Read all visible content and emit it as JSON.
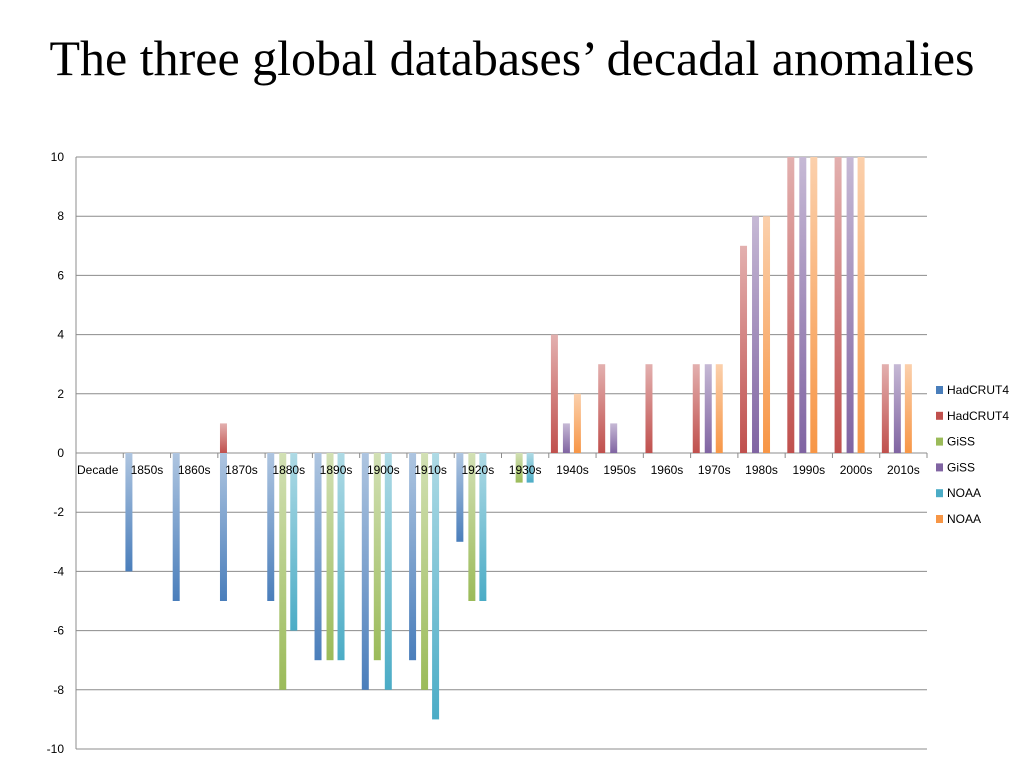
{
  "title": "The three global databases’ decadal anomalies",
  "chart_data": {
    "type": "bar",
    "title": "The three global databases’ decadal anomalies",
    "categories": [
      "Decade",
      "1850s",
      "1860s",
      "1870s",
      "1880s",
      "1890s",
      "1900s",
      "1910s",
      "1920s",
      "1930s",
      "1940s",
      "1950s",
      "1960s",
      "1970s",
      "1980s",
      "1990s",
      "2000s",
      "2010s"
    ],
    "ylim": [
      -10,
      10
    ],
    "yticks": [
      -10,
      -8,
      -6,
      -4,
      -2,
      0,
      2,
      4,
      6,
      8,
      10
    ],
    "grid": true,
    "legend_position": "right",
    "series": [
      {
        "name": "HadCRUT4",
        "color": "#4a7ebb",
        "values": [
          null,
          -4,
          -5,
          -5,
          -5,
          -7,
          -8,
          -7,
          -3,
          null,
          null,
          null,
          null,
          null,
          null,
          null,
          null,
          null
        ]
      },
      {
        "name": "HadCRUT4",
        "color": "#c0504d",
        "values": [
          null,
          null,
          null,
          1,
          null,
          null,
          null,
          null,
          null,
          null,
          4,
          3,
          3,
          3,
          7,
          10,
          10,
          3
        ]
      },
      {
        "name": "GiSS",
        "color": "#9bbb59",
        "values": [
          null,
          null,
          null,
          null,
          -8,
          -7,
          -7,
          -8,
          -5,
          -1,
          null,
          null,
          null,
          null,
          null,
          null,
          null,
          null
        ]
      },
      {
        "name": "GiSS",
        "color": "#8064a2",
        "values": [
          null,
          null,
          null,
          null,
          null,
          null,
          null,
          null,
          null,
          null,
          1,
          1,
          null,
          3,
          8,
          10,
          10,
          3
        ]
      },
      {
        "name": "NOAA",
        "color": "#4bacc6",
        "values": [
          null,
          null,
          null,
          null,
          -6,
          -7,
          -8,
          -9,
          -5,
          -1,
          null,
          null,
          null,
          null,
          null,
          null,
          null,
          null
        ]
      },
      {
        "name": "NOAA",
        "color": "#f79646",
        "values": [
          null,
          null,
          null,
          null,
          null,
          null,
          null,
          null,
          null,
          null,
          2,
          null,
          null,
          3,
          8,
          10,
          10,
          3
        ]
      }
    ]
  }
}
